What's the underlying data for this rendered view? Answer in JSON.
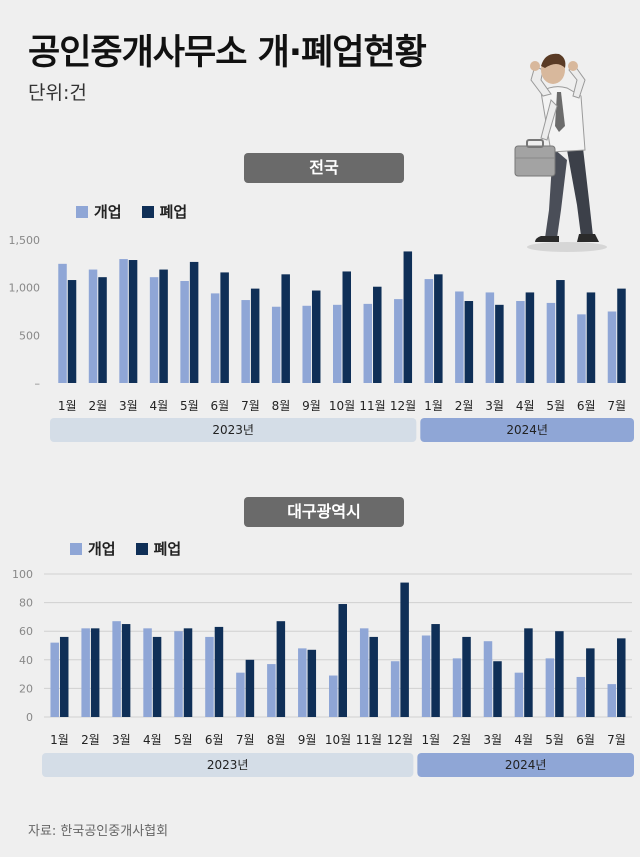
{
  "title": "공인중개사무소 개·폐업현황",
  "unit": "단위:건",
  "source": "자료: 한국공인중개사협회",
  "colors": {
    "open": "#8fa6d6",
    "close": "#0f2f57",
    "bar_2023": "#d4dde7",
    "bar_2024": "#8fa6d6"
  },
  "legend": {
    "open": "개업",
    "close": "폐업"
  },
  "illustration": "stressed-man-with-briefcase",
  "chart_data": [
    {
      "type": "bar",
      "panel_label": "전국",
      "categories": [
        "1월",
        "2월",
        "3월",
        "4월",
        "5월",
        "6월",
        "7월",
        "8월",
        "9월",
        "10월",
        "11월",
        "12월",
        "1월",
        "2월",
        "3월",
        "4월",
        "5월",
        "6월",
        "7월"
      ],
      "year_groups": [
        {
          "label": "2023년",
          "count": 12
        },
        {
          "label": "2024년",
          "count": 7
        }
      ],
      "series": [
        {
          "name": "개업",
          "values": [
            1250,
            1190,
            1300,
            1110,
            1070,
            940,
            870,
            800,
            810,
            820,
            830,
            880,
            1090,
            960,
            950,
            860,
            840,
            720,
            750
          ]
        },
        {
          "name": "폐업",
          "values": [
            1080,
            1110,
            1290,
            1190,
            1270,
            1160,
            990,
            1140,
            970,
            1170,
            1010,
            1380,
            1140,
            860,
            820,
            950,
            1080,
            950,
            990
          ]
        }
      ],
      "ylim": [
        0,
        1500
      ],
      "yticks": [
        {
          "v": 0,
          "label": "–"
        },
        {
          "v": 500,
          "label": "500"
        },
        {
          "v": 1000,
          "label": "1,000"
        },
        {
          "v": 1500,
          "label": "1,500"
        }
      ],
      "grid": false
    },
    {
      "type": "bar",
      "panel_label": "대구광역시",
      "categories": [
        "1월",
        "2월",
        "3월",
        "4월",
        "5월",
        "6월",
        "7월",
        "8월",
        "9월",
        "10월",
        "11월",
        "12월",
        "1월",
        "2월",
        "3월",
        "4월",
        "5월",
        "6월",
        "7월"
      ],
      "year_groups": [
        {
          "label": "2023년",
          "count": 12
        },
        {
          "label": "2024년",
          "count": 7
        }
      ],
      "series": [
        {
          "name": "개업",
          "values": [
            52,
            62,
            67,
            62,
            60,
            56,
            31,
            37,
            48,
            29,
            62,
            39,
            57,
            41,
            53,
            31,
            41,
            28,
            23
          ]
        },
        {
          "name": "폐업",
          "values": [
            56,
            62,
            65,
            56,
            62,
            63,
            40,
            67,
            47,
            79,
            56,
            94,
            65,
            56,
            39,
            62,
            60,
            48,
            55
          ]
        }
      ],
      "ylim": [
        0,
        100
      ],
      "yticks": [
        {
          "v": 0,
          "label": "0"
        },
        {
          "v": 20,
          "label": "20"
        },
        {
          "v": 40,
          "label": "40"
        },
        {
          "v": 60,
          "label": "60"
        },
        {
          "v": 80,
          "label": "80"
        },
        {
          "v": 100,
          "label": "100"
        }
      ],
      "grid": true
    }
  ]
}
